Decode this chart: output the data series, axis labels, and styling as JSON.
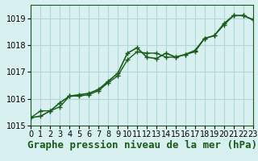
{
  "title": "Graphe pression niveau de la mer (hPa)",
  "background_color": "#d8f0f0",
  "grid_color": "#b0d8d8",
  "line_color": "#1a5c1a",
  "marker_color": "#1a5c1a",
  "xlim": [
    0,
    23
  ],
  "ylim": [
    1015,
    1019.5
  ],
  "yticks": [
    1015,
    1016,
    1017,
    1018,
    1019
  ],
  "xticks": [
    0,
    1,
    2,
    3,
    4,
    5,
    6,
    7,
    8,
    9,
    10,
    11,
    12,
    13,
    14,
    15,
    16,
    17,
    18,
    19,
    20,
    21,
    22,
    23
  ],
  "series1_x": [
    0,
    1,
    2,
    3,
    4,
    5,
    6,
    7,
    8,
    9,
    10,
    11,
    12,
    13,
    14,
    15,
    16,
    17,
    18,
    19,
    20,
    21,
    22,
    23
  ],
  "series1_y": [
    1015.3,
    1015.55,
    1015.55,
    1015.7,
    1016.1,
    1016.1,
    1016.15,
    1016.3,
    1016.6,
    1016.85,
    1017.45,
    1017.75,
    1017.7,
    1017.7,
    1017.55,
    1017.55,
    1017.65,
    1017.75,
    1018.25,
    1018.35,
    1018.75,
    1019.1,
    1019.1,
    1018.95
  ],
  "series2_x": [
    0,
    1,
    2,
    3,
    4,
    5,
    6,
    7,
    8,
    9,
    10,
    11,
    12,
    13,
    14,
    15,
    16,
    17,
    18,
    19,
    20,
    21,
    22,
    23
  ],
  "series2_y": [
    1015.3,
    1015.35,
    1015.55,
    1015.85,
    1016.1,
    1016.15,
    1016.2,
    1016.35,
    1016.65,
    1016.95,
    1017.7,
    1017.9,
    1017.55,
    1017.5,
    1017.7,
    1017.55,
    1017.65,
    1017.8,
    1018.25,
    1018.35,
    1018.8,
    1019.1,
    1019.1,
    1018.95
  ],
  "title_fontsize": 9,
  "tick_fontsize": 7
}
